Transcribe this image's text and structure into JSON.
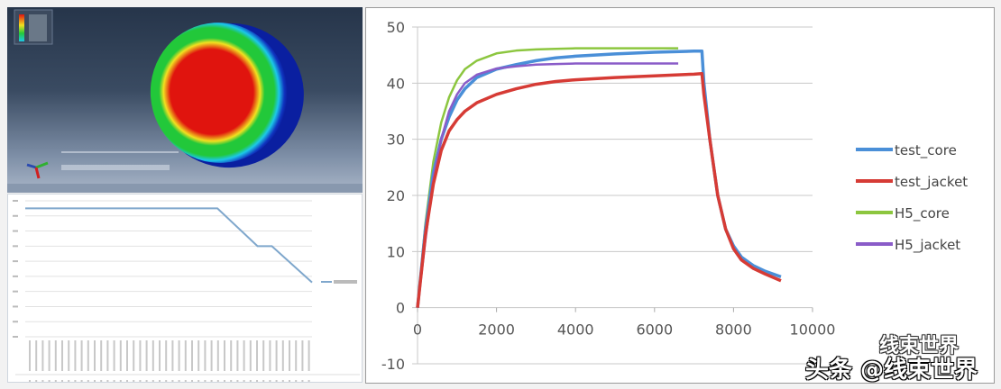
{
  "chart_data": [
    {
      "type": "line",
      "title": "",
      "xlabel": "",
      "ylabel": "",
      "xlim": [
        0,
        10000
      ],
      "ylim": [
        -10,
        50
      ],
      "x_ticks": [
        "0",
        "2000",
        "4000",
        "6000",
        "8000",
        "10000"
      ],
      "y_ticks": [
        "-10",
        "0",
        "10",
        "20",
        "30",
        "40",
        "50"
      ],
      "grid": "horizontal",
      "legend_position": "right",
      "series": [
        {
          "name": "test_core",
          "color": "#4a8fd8",
          "x": [
            0,
            200,
            400,
            600,
            800,
            1000,
            1200,
            1500,
            2000,
            2500,
            3000,
            3500,
            4000,
            5000,
            6000,
            7000,
            7200,
            7250,
            7400,
            7600,
            7800,
            8000,
            8200,
            8500,
            8800,
            9200
          ],
          "y": [
            0,
            14,
            24,
            30,
            34,
            37,
            39,
            41,
            42.5,
            43.3,
            44,
            44.5,
            44.8,
            45.2,
            45.5,
            45.7,
            45.7,
            40,
            30,
            20,
            14,
            11,
            9,
            7.5,
            6.5,
            5.5
          ]
        },
        {
          "name": "test_jacket",
          "color": "#d63b35",
          "x": [
            0,
            200,
            400,
            600,
            800,
            1000,
            1200,
            1500,
            2000,
            2500,
            3000,
            3500,
            4000,
            5000,
            6000,
            7000,
            7200,
            7250,
            7400,
            7600,
            7800,
            8000,
            8200,
            8500,
            8800,
            9200
          ],
          "y": [
            0,
            13,
            22,
            28,
            31.5,
            33.5,
            35,
            36.5,
            38,
            39,
            39.8,
            40.3,
            40.6,
            41,
            41.3,
            41.6,
            41.7,
            38,
            30,
            20,
            14,
            10.5,
            8.5,
            7,
            6,
            4.8
          ]
        },
        {
          "name": "H5_core",
          "color": "#8cc63f",
          "x": [
            0,
            200,
            400,
            600,
            800,
            1000,
            1200,
            1500,
            2000,
            2500,
            3000,
            3500,
            4000,
            5000,
            6000,
            6600
          ],
          "y": [
            0,
            15,
            26,
            33,
            37.5,
            40.5,
            42.5,
            44,
            45.3,
            45.8,
            46,
            46.1,
            46.2,
            46.2,
            46.2,
            46.2
          ]
        },
        {
          "name": "H5_jacket",
          "color": "#8a5cc8",
          "x": [
            0,
            200,
            400,
            600,
            800,
            1000,
            1200,
            1500,
            2000,
            2500,
            3000,
            3500,
            4000,
            5000,
            6000,
            6600
          ],
          "y": [
            0,
            12,
            23,
            30,
            35,
            38,
            40,
            41.5,
            42.6,
            43,
            43.3,
            43.4,
            43.5,
            43.5,
            43.5,
            43.5
          ]
        }
      ]
    },
    {
      "type": "line",
      "title": "",
      "ylim": [
        0,
        9
      ],
      "grid": "horizontal",
      "legend_position": "right",
      "series": [
        {
          "color": "#7fa7cc",
          "x": [
            0,
            0.67,
            0.81,
            0.86,
            1.0
          ],
          "y": [
            8.5,
            8.5,
            6.0,
            6.0,
            3.6
          ]
        }
      ]
    }
  ],
  "simulation": {
    "contour_colors": [
      "#0a1fa0",
      "#1cc8e8",
      "#22c83a",
      "#f2e020",
      "#e0140e"
    ]
  },
  "watermark": {
    "line1": "线束世界",
    "line2": "头条 @线束世界"
  }
}
